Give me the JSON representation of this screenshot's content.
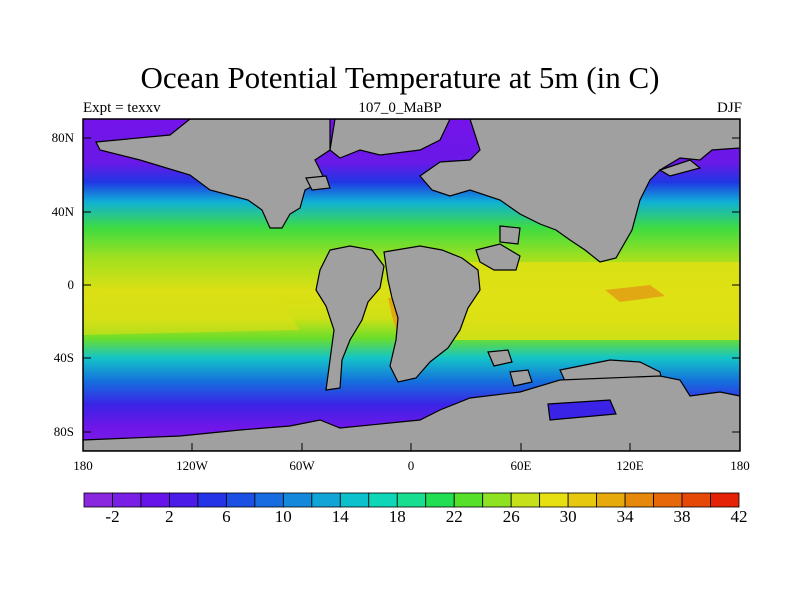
{
  "title": "Ocean Potential Temperature at 5m (in C)",
  "subtitle_left": "Expt = texxv",
  "subtitle_center": "107_0_MaBP",
  "subtitle_right": "DJF",
  "y_ticks": [
    "80N",
    "40N",
    "0",
    "40S",
    "80S"
  ],
  "x_ticks": [
    "180",
    "120W",
    "60W",
    "0",
    "60E",
    "120E",
    "180"
  ],
  "colorbar": {
    "labels": [
      "-2",
      "2",
      "6",
      "10",
      "14",
      "18",
      "22",
      "26",
      "30",
      "34",
      "38",
      "42"
    ],
    "colors": [
      "#8a28e0",
      "#7a1fe6",
      "#6614ea",
      "#4b1be8",
      "#2434e6",
      "#1c4fe4",
      "#186ce2",
      "#1489dc",
      "#10a5d6",
      "#0cc0cc",
      "#10d6b8",
      "#18de90",
      "#22de52",
      "#56e02a",
      "#8fe222",
      "#c6e01c",
      "#e6e012",
      "#e6c80e",
      "#e6aa0c",
      "#e6880a",
      "#e66808",
      "#e64806",
      "#e62206"
    ]
  },
  "colors": {
    "land": "#a0a0a0",
    "warm_pool": "#e2a814"
  }
}
